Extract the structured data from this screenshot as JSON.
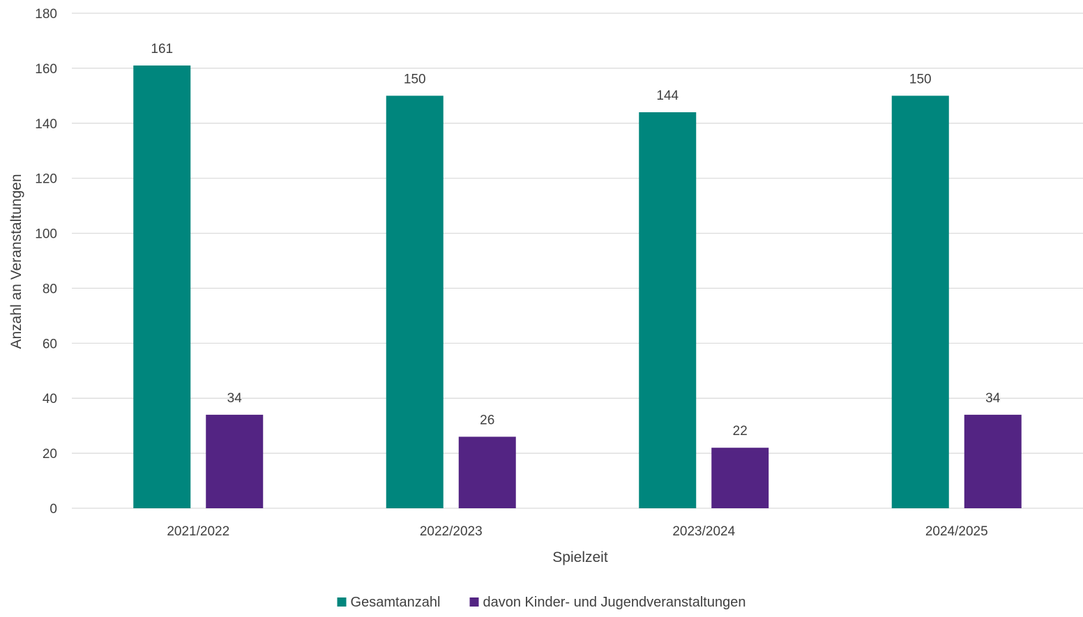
{
  "chart_data": {
    "type": "bar",
    "title": "",
    "xlabel": "Spielzeit",
    "ylabel": "Anzahl an Veranstaltungen",
    "ylim": [
      0,
      180
    ],
    "ytick_step": 20,
    "yticks": [
      "0",
      "20",
      "40",
      "60",
      "80",
      "100",
      "120",
      "140",
      "160",
      "180"
    ],
    "grid": true,
    "legend_position": "bottom",
    "categories": [
      "2021/2022",
      "2022/2023",
      "2023/2024",
      "2024/2025"
    ],
    "series": [
      {
        "name": "Gesamtanzahl",
        "color": "#00867D",
        "values": [
          161,
          150,
          144,
          150
        ]
      },
      {
        "name": "davon Kinder- und Jugendveranstaltungen",
        "color": "#532483",
        "values": [
          34,
          26,
          22,
          34
        ]
      }
    ]
  }
}
